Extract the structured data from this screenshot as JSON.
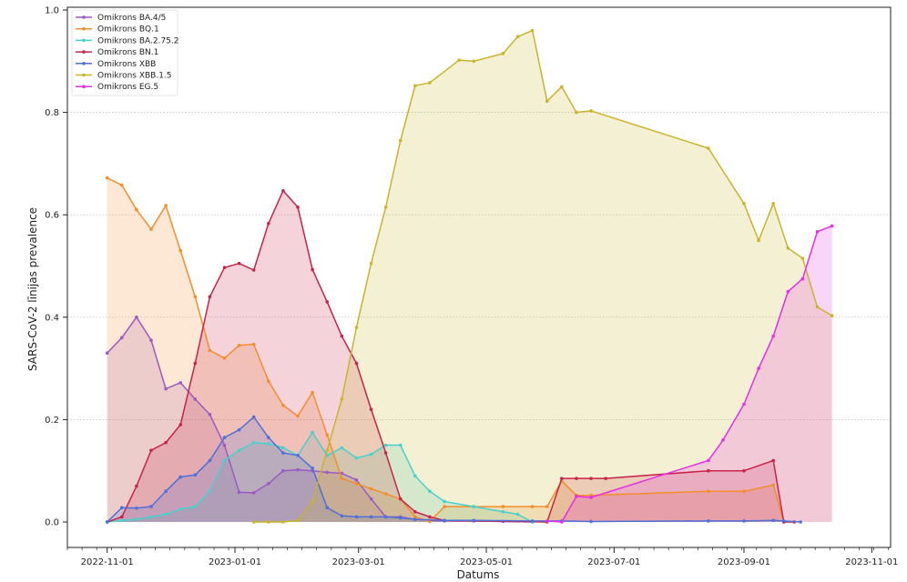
{
  "chart_data": {
    "type": "line",
    "title": "",
    "xlabel": "Datums",
    "ylabel": "SARS-CoV-2 līnijas prevalence",
    "ylim": [
      0,
      1.0
    ],
    "xlim": [
      "2022-10-13",
      "2023-11-10"
    ],
    "grid": "horizontal-dotted",
    "legend_position": "top-left",
    "x_ticks": [
      "2022-11-01",
      "2023-01-01",
      "2023-03-01",
      "2023-05-01",
      "2023-07-01",
      "2023-09-01",
      "2023-11-01"
    ],
    "y_ticks": [
      0.0,
      0.2,
      0.4,
      0.6,
      0.8,
      1.0
    ],
    "y_tick_labels": [
      "0.0",
      "0.2",
      "0.4",
      "0.6",
      "0.8",
      "1.0"
    ],
    "series": [
      {
        "name": "Omikrons BA.4/5",
        "color": "#9b59c4",
        "points": [
          [
            "2022-11-01",
            0.33
          ],
          [
            "2022-11-08",
            0.36
          ],
          [
            "2022-11-15",
            0.4
          ],
          [
            "2022-11-22",
            0.355
          ],
          [
            "2022-11-29",
            0.26
          ],
          [
            "2022-12-06",
            0.272
          ],
          [
            "2022-12-13",
            0.24
          ],
          [
            "2022-12-20",
            0.21
          ],
          [
            "2022-12-27",
            0.15
          ],
          [
            "2023-01-03",
            0.058
          ],
          [
            "2023-01-10",
            0.057
          ],
          [
            "2023-01-17",
            0.075
          ],
          [
            "2023-01-24",
            0.1
          ],
          [
            "2023-01-31",
            0.102
          ],
          [
            "2023-02-07",
            0.1
          ],
          [
            "2023-02-14",
            0.097
          ],
          [
            "2023-02-21",
            0.095
          ],
          [
            "2023-02-28",
            0.082
          ],
          [
            "2023-03-07",
            0.045
          ],
          [
            "2023-03-14",
            0.01
          ],
          [
            "2023-03-21",
            0.01
          ],
          [
            "2023-03-28",
            0.005
          ],
          [
            "2023-04-04",
            0.003
          ],
          [
            "2023-04-11",
            0.002
          ],
          [
            "2023-04-25",
            0.002
          ],
          [
            "2023-05-09",
            0.001
          ],
          [
            "2023-05-23",
            0.0
          ]
        ]
      },
      {
        "name": "Omikrons BQ.1",
        "color": "#f28e2b",
        "points": [
          [
            "2022-11-01",
            0.672
          ],
          [
            "2022-11-08",
            0.658
          ],
          [
            "2022-11-15",
            0.61
          ],
          [
            "2022-11-22",
            0.572
          ],
          [
            "2022-11-29",
            0.618
          ],
          [
            "2022-12-06",
            0.53
          ],
          [
            "2022-12-13",
            0.44
          ],
          [
            "2022-12-20",
            0.335
          ],
          [
            "2022-12-27",
            0.32
          ],
          [
            "2023-01-03",
            0.345
          ],
          [
            "2023-01-10",
            0.347
          ],
          [
            "2023-01-17",
            0.275
          ],
          [
            "2023-01-24",
            0.228
          ],
          [
            "2023-01-31",
            0.207
          ],
          [
            "2023-02-07",
            0.253
          ],
          [
            "2023-02-14",
            0.17
          ],
          [
            "2023-02-21",
            0.085
          ],
          [
            "2023-02-28",
            0.075
          ],
          [
            "2023-03-07",
            0.065
          ],
          [
            "2023-03-14",
            0.055
          ],
          [
            "2023-03-21",
            0.045
          ],
          [
            "2023-03-28",
            0.01
          ],
          [
            "2023-04-04",
            0.001
          ],
          [
            "2023-04-11",
            0.03
          ],
          [
            "2023-04-25",
            0.03
          ],
          [
            "2023-05-09",
            0.03
          ],
          [
            "2023-05-23",
            0.03
          ],
          [
            "2023-05-30",
            0.03
          ],
          [
            "2023-06-06",
            0.08
          ],
          [
            "2023-06-13",
            0.052
          ],
          [
            "2023-06-20",
            0.052
          ],
          [
            "2023-08-15",
            0.06
          ],
          [
            "2023-09-01",
            0.06
          ],
          [
            "2023-09-15",
            0.072
          ],
          [
            "2023-09-20",
            0.0
          ]
        ]
      },
      {
        "name": "Omikrons BA.2.75.2",
        "color": "#48d1cc",
        "points": [
          [
            "2022-11-01",
            0.0
          ],
          [
            "2022-11-08",
            0.003
          ],
          [
            "2022-11-15",
            0.005
          ],
          [
            "2022-11-22",
            0.01
          ],
          [
            "2022-11-29",
            0.015
          ],
          [
            "2022-12-06",
            0.025
          ],
          [
            "2022-12-13",
            0.03
          ],
          [
            "2022-12-20",
            0.06
          ],
          [
            "2022-12-27",
            0.12
          ],
          [
            "2023-01-03",
            0.14
          ],
          [
            "2023-01-10",
            0.155
          ],
          [
            "2023-01-17",
            0.153
          ],
          [
            "2023-01-24",
            0.145
          ],
          [
            "2023-01-31",
            0.13
          ],
          [
            "2023-02-07",
            0.175
          ],
          [
            "2023-02-14",
            0.13
          ],
          [
            "2023-02-21",
            0.145
          ],
          [
            "2023-02-28",
            0.125
          ],
          [
            "2023-03-07",
            0.132
          ],
          [
            "2023-03-14",
            0.15
          ],
          [
            "2023-03-21",
            0.15
          ],
          [
            "2023-03-28",
            0.09
          ],
          [
            "2023-04-04",
            0.06
          ],
          [
            "2023-04-11",
            0.04
          ],
          [
            "2023-04-25",
            0.03
          ],
          [
            "2023-05-09",
            0.02
          ],
          [
            "2023-05-16",
            0.015
          ],
          [
            "2023-05-23",
            0.0
          ]
        ]
      },
      {
        "name": "Omikrons BN.1",
        "color": "#c8234a",
        "points": [
          [
            "2022-11-01",
            0.0
          ],
          [
            "2022-11-08",
            0.01
          ],
          [
            "2022-11-15",
            0.07
          ],
          [
            "2022-11-22",
            0.14
          ],
          [
            "2022-11-29",
            0.155
          ],
          [
            "2022-12-06",
            0.19
          ],
          [
            "2022-12-13",
            0.31
          ],
          [
            "2022-12-20",
            0.44
          ],
          [
            "2022-12-27",
            0.497
          ],
          [
            "2023-01-03",
            0.505
          ],
          [
            "2023-01-10",
            0.492
          ],
          [
            "2023-01-17",
            0.583
          ],
          [
            "2023-01-24",
            0.647
          ],
          [
            "2023-01-31",
            0.615
          ],
          [
            "2023-02-07",
            0.493
          ],
          [
            "2023-02-14",
            0.43
          ],
          [
            "2023-02-21",
            0.363
          ],
          [
            "2023-02-28",
            0.31
          ],
          [
            "2023-03-07",
            0.22
          ],
          [
            "2023-03-14",
            0.135
          ],
          [
            "2023-03-21",
            0.045
          ],
          [
            "2023-03-28",
            0.02
          ],
          [
            "2023-04-04",
            0.01
          ],
          [
            "2023-04-11",
            0.003
          ],
          [
            "2023-05-30",
            0.0
          ],
          [
            "2023-06-06",
            0.085
          ],
          [
            "2023-06-13",
            0.085
          ],
          [
            "2023-06-20",
            0.085
          ],
          [
            "2023-06-27",
            0.085
          ],
          [
            "2023-08-15",
            0.1
          ],
          [
            "2023-09-01",
            0.1
          ],
          [
            "2023-09-15",
            0.12
          ],
          [
            "2023-09-20",
            0.0
          ],
          [
            "2023-09-25",
            0.0
          ]
        ]
      },
      {
        "name": "Omikrons XBB",
        "color": "#4f6fd9",
        "points": [
          [
            "2022-11-01",
            0.0
          ],
          [
            "2022-11-08",
            0.028
          ],
          [
            "2022-11-15",
            0.027
          ],
          [
            "2022-11-22",
            0.03
          ],
          [
            "2022-11-29",
            0.06
          ],
          [
            "2022-12-06",
            0.088
          ],
          [
            "2022-12-13",
            0.092
          ],
          [
            "2022-12-20",
            0.12
          ],
          [
            "2022-12-27",
            0.165
          ],
          [
            "2023-01-03",
            0.18
          ],
          [
            "2023-01-10",
            0.205
          ],
          [
            "2023-01-17",
            0.165
          ],
          [
            "2023-01-24",
            0.135
          ],
          [
            "2023-01-31",
            0.13
          ],
          [
            "2023-02-07",
            0.105
          ],
          [
            "2023-02-14",
            0.028
          ],
          [
            "2023-02-21",
            0.012
          ],
          [
            "2023-02-28",
            0.01
          ],
          [
            "2023-03-07",
            0.01
          ],
          [
            "2023-03-14",
            0.01
          ],
          [
            "2023-03-21",
            0.008
          ],
          [
            "2023-03-28",
            0.005
          ],
          [
            "2023-04-11",
            0.003
          ],
          [
            "2023-04-25",
            0.003
          ],
          [
            "2023-05-23",
            0.002
          ],
          [
            "2023-06-06",
            0.002
          ],
          [
            "2023-06-20",
            0.001
          ],
          [
            "2023-08-15",
            0.002
          ],
          [
            "2023-09-01",
            0.002
          ],
          [
            "2023-09-15",
            0.003
          ],
          [
            "2023-09-20",
            0.002
          ],
          [
            "2023-09-28",
            0.0
          ]
        ]
      },
      {
        "name": "Omikrons XBB.1.5",
        "color": "#c9b42a",
        "points": [
          [
            "2023-01-10",
            0.0
          ],
          [
            "2023-01-17",
            0.0
          ],
          [
            "2023-01-24",
            0.0
          ],
          [
            "2023-01-31",
            0.003
          ],
          [
            "2023-02-07",
            0.04
          ],
          [
            "2023-02-14",
            0.14
          ],
          [
            "2023-02-21",
            0.24
          ],
          [
            "2023-02-28",
            0.38
          ],
          [
            "2023-03-07",
            0.505
          ],
          [
            "2023-03-14",
            0.615
          ],
          [
            "2023-03-21",
            0.745
          ],
          [
            "2023-03-28",
            0.852
          ],
          [
            "2023-04-04",
            0.858
          ],
          [
            "2023-04-18",
            0.902
          ],
          [
            "2023-04-25",
            0.9
          ],
          [
            "2023-05-09",
            0.915
          ],
          [
            "2023-05-16",
            0.948
          ],
          [
            "2023-05-23",
            0.96
          ],
          [
            "2023-05-30",
            0.822
          ],
          [
            "2023-06-06",
            0.85
          ],
          [
            "2023-06-13",
            0.8
          ],
          [
            "2023-06-20",
            0.803
          ],
          [
            "2023-08-15",
            0.73
          ],
          [
            "2023-09-01",
            0.622
          ],
          [
            "2023-09-08",
            0.55
          ],
          [
            "2023-09-15",
            0.622
          ],
          [
            "2023-09-22",
            0.535
          ],
          [
            "2023-09-29",
            0.515
          ],
          [
            "2023-10-06",
            0.42
          ],
          [
            "2023-10-13",
            0.403
          ]
        ]
      },
      {
        "name": "Omikrons EG.5",
        "color": "#e62ee6",
        "points": [
          [
            "2023-05-30",
            0.002
          ],
          [
            "2023-06-06",
            0.0
          ],
          [
            "2023-06-13",
            0.05
          ],
          [
            "2023-06-20",
            0.048
          ],
          [
            "2023-08-15",
            0.12
          ],
          [
            "2023-08-22",
            0.16
          ],
          [
            "2023-09-01",
            0.23
          ],
          [
            "2023-09-08",
            0.3
          ],
          [
            "2023-09-15",
            0.363
          ],
          [
            "2023-09-22",
            0.45
          ],
          [
            "2023-09-29",
            0.475
          ],
          [
            "2023-10-06",
            0.567
          ],
          [
            "2023-10-13",
            0.578
          ]
        ]
      }
    ]
  }
}
